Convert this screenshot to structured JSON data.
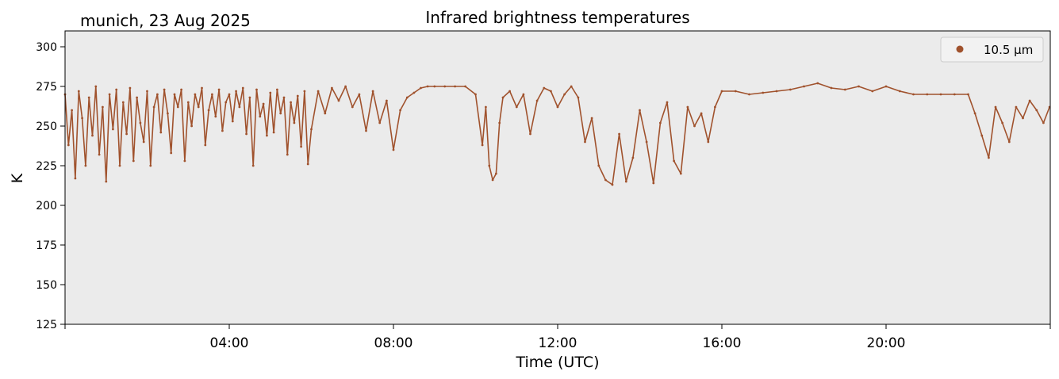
{
  "chart_data": {
    "type": "scatter",
    "title": "Infrared brightness temperatures",
    "subtitle": "munich, 23 Aug 2025",
    "xlabel": "Time (UTC)",
    "ylabel": "K",
    "xlim": [
      "00:00",
      "24:00"
    ],
    "ylim": [
      125,
      310
    ],
    "x_ticks": [
      "04:00",
      "08:00",
      "12:00",
      "16:00",
      "20:00"
    ],
    "y_ticks": [
      125,
      150,
      175,
      200,
      225,
      250,
      275,
      300
    ],
    "grid": false,
    "legend_position": "top-right",
    "background_color": "#ebebeb",
    "series": [
      {
        "name": "10.5 µm",
        "color": "#a0522d",
        "x": [
          "00:00",
          "00:05",
          "00:10",
          "00:15",
          "00:20",
          "00:25",
          "00:30",
          "00:35",
          "00:40",
          "00:45",
          "00:50",
          "00:55",
          "01:00",
          "01:05",
          "01:10",
          "01:15",
          "01:20",
          "01:25",
          "01:30",
          "01:35",
          "01:40",
          "01:45",
          "01:50",
          "01:55",
          "02:00",
          "02:05",
          "02:10",
          "02:15",
          "02:20",
          "02:25",
          "02:30",
          "02:35",
          "02:40",
          "02:45",
          "02:50",
          "02:55",
          "03:00",
          "03:05",
          "03:10",
          "03:15",
          "03:20",
          "03:25",
          "03:30",
          "03:35",
          "03:40",
          "03:45",
          "03:50",
          "03:55",
          "04:00",
          "04:05",
          "04:10",
          "04:15",
          "04:20",
          "04:25",
          "04:30",
          "04:35",
          "04:40",
          "04:45",
          "04:50",
          "04:55",
          "05:00",
          "05:05",
          "05:10",
          "05:15",
          "05:20",
          "05:25",
          "05:30",
          "05:35",
          "05:40",
          "05:45",
          "05:50",
          "05:55",
          "06:00",
          "06:10",
          "06:20",
          "06:30",
          "06:40",
          "06:50",
          "07:00",
          "07:10",
          "07:20",
          "07:30",
          "07:40",
          "07:50",
          "08:00",
          "08:10",
          "08:20",
          "08:30",
          "08:40",
          "08:50",
          "09:00",
          "09:15",
          "09:30",
          "09:45",
          "10:00",
          "10:10",
          "10:15",
          "10:20",
          "10:25",
          "10:30",
          "10:35",
          "10:40",
          "10:50",
          "11:00",
          "11:10",
          "11:20",
          "11:30",
          "11:40",
          "11:50",
          "12:00",
          "12:10",
          "12:20",
          "12:30",
          "12:40",
          "12:50",
          "13:00",
          "13:10",
          "13:20",
          "13:30",
          "13:40",
          "13:50",
          "14:00",
          "14:10",
          "14:20",
          "14:30",
          "14:40",
          "14:50",
          "15:00",
          "15:10",
          "15:20",
          "15:30",
          "15:40",
          "15:50",
          "16:00",
          "16:20",
          "16:40",
          "17:00",
          "17:20",
          "17:40",
          "18:00",
          "18:20",
          "18:40",
          "19:00",
          "19:20",
          "19:40",
          "20:00",
          "20:20",
          "20:40",
          "21:00",
          "21:20",
          "21:40",
          "22:00",
          "22:10",
          "22:20",
          "22:30",
          "22:40",
          "22:50",
          "23:00",
          "23:10",
          "23:20",
          "23:30",
          "23:40",
          "23:50",
          "23:59"
        ],
        "values": [
          270,
          238,
          260,
          217,
          272,
          255,
          225,
          268,
          244,
          275,
          232,
          262,
          215,
          270,
          248,
          273,
          225,
          265,
          245,
          274,
          228,
          268,
          252,
          240,
          272,
          225,
          262,
          270,
          246,
          273,
          258,
          233,
          270,
          262,
          273,
          228,
          265,
          250,
          270,
          262,
          274,
          238,
          260,
          270,
          256,
          273,
          247,
          265,
          270,
          253,
          272,
          262,
          274,
          245,
          268,
          225,
          273,
          256,
          264,
          244,
          271,
          246,
          273,
          258,
          268,
          232,
          265,
          252,
          269,
          237,
          272,
          226,
          248,
          272,
          258,
          274,
          266,
          275,
          262,
          270,
          247,
          272,
          252,
          266,
          235,
          260,
          268,
          271,
          274,
          275,
          275,
          275,
          275,
          275,
          270,
          238,
          262,
          225,
          216,
          220,
          252,
          268,
          272,
          262,
          270,
          245,
          266,
          274,
          272,
          262,
          270,
          275,
          268,
          240,
          255,
          225,
          216,
          213,
          245,
          215,
          230,
          260,
          240,
          214,
          252,
          265,
          228,
          220,
          262,
          250,
          258,
          240,
          262,
          272,
          272,
          270,
          271,
          272,
          273,
          275,
          277,
          274,
          273,
          275,
          272,
          275,
          272,
          270,
          270,
          270,
          270,
          270,
          258,
          244,
          230,
          262,
          252,
          240,
          262,
          255,
          266,
          260,
          252,
          262
        ]
      }
    ]
  }
}
